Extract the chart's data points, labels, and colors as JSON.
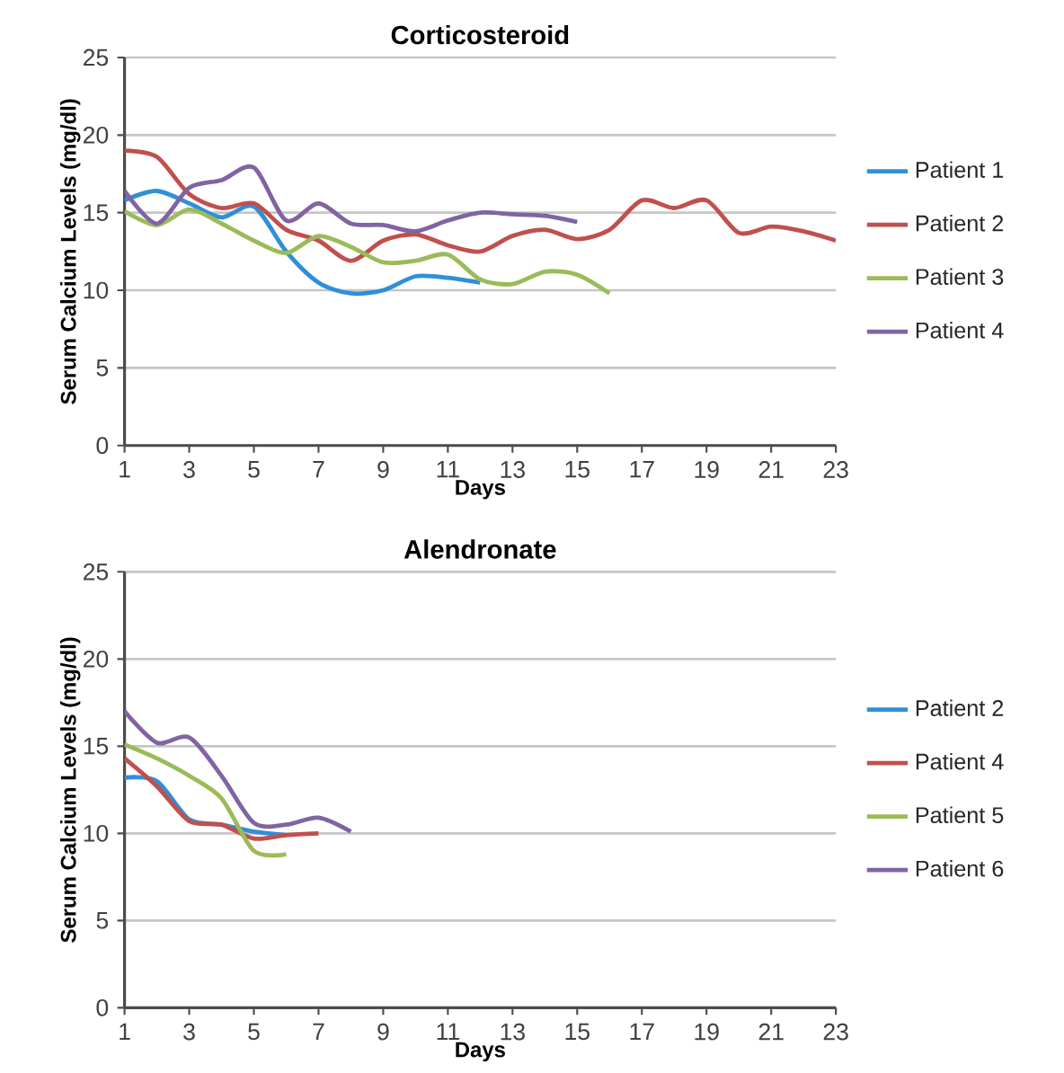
{
  "chart_data": [
    {
      "type": "line",
      "title": "Corticosteroid",
      "xlabel": "Days",
      "ylabel": "Serum Calcium Levels (mg/dl)",
      "xlim": [
        1,
        23
      ],
      "xticks": [
        1,
        3,
        5,
        7,
        9,
        11,
        13,
        15,
        17,
        19,
        21,
        23
      ],
      "ylim": [
        0,
        25
      ],
      "yticks": [
        0,
        5,
        10,
        15,
        20,
        25
      ],
      "grid": "y",
      "legend": "right",
      "marker": "none",
      "series": [
        {
          "name": "Patient 1",
          "color": "#2f8fd8",
          "x": [
            1,
            2,
            3,
            4,
            5,
            6,
            7,
            8,
            9,
            10,
            11,
            12
          ],
          "values": [
            15.8,
            16.4,
            15.6,
            14.7,
            15.4,
            12.5,
            10.5,
            9.8,
            10.0,
            10.9,
            10.8,
            10.5
          ]
        },
        {
          "name": "Patient 2",
          "color": "#c0504d",
          "x": [
            1,
            2,
            3,
            4,
            5,
            6,
            7,
            8,
            9,
            10,
            11,
            12,
            13,
            14,
            15,
            16,
            17,
            18,
            19,
            20,
            21,
            22,
            23
          ],
          "values": [
            19.0,
            18.6,
            16.2,
            15.3,
            15.6,
            13.9,
            13.2,
            11.9,
            13.2,
            13.6,
            12.9,
            12.5,
            13.5,
            13.9,
            13.3,
            13.9,
            15.8,
            15.3,
            15.8,
            13.7,
            14.1,
            13.8,
            13.2
          ]
        },
        {
          "name": "Patient 3",
          "color": "#9bbb59",
          "x": [
            1,
            2,
            3,
            4,
            5,
            6,
            7,
            8,
            9,
            10,
            11,
            12,
            13,
            14,
            15,
            16
          ],
          "values": [
            15.1,
            14.2,
            15.2,
            14.3,
            13.2,
            12.4,
            13.5,
            12.8,
            11.8,
            11.9,
            12.3,
            10.7,
            10.4,
            11.2,
            11.0,
            9.8
          ]
        },
        {
          "name": "Patient 4",
          "color": "#8064a2",
          "x": [
            1,
            2,
            3,
            4,
            5,
            6,
            7,
            8,
            9,
            10,
            11,
            12,
            13,
            14,
            15
          ],
          "values": [
            16.4,
            14.3,
            16.6,
            17.1,
            17.9,
            14.5,
            15.6,
            14.3,
            14.2,
            13.8,
            14.5,
            15.0,
            14.9,
            14.8,
            14.4
          ]
        }
      ]
    },
    {
      "type": "line",
      "title": "Alendronate",
      "xlabel": "Days",
      "ylabel": "Serum Calcium Levels (mg/dl)",
      "xlim": [
        1,
        23
      ],
      "xticks": [
        1,
        3,
        5,
        7,
        9,
        11,
        13,
        15,
        17,
        19,
        21,
        23
      ],
      "ylim": [
        0,
        25
      ],
      "yticks": [
        0,
        5,
        10,
        15,
        20,
        25
      ],
      "grid": "y",
      "legend": "right",
      "marker": "none",
      "series": [
        {
          "name": "Patient 2",
          "color": "#2f8fd8",
          "x": [
            1,
            2,
            3,
            4,
            5,
            6
          ],
          "values": [
            13.2,
            13.0,
            10.8,
            10.5,
            10.1,
            9.9
          ]
        },
        {
          "name": "Patient 4",
          "color": "#c0504d",
          "x": [
            1,
            2,
            3,
            4,
            5,
            6,
            7
          ],
          "values": [
            14.3,
            12.7,
            10.7,
            10.5,
            9.7,
            9.9,
            10.0
          ]
        },
        {
          "name": "Patient 5",
          "color": "#9bbb59",
          "x": [
            1,
            2,
            3,
            4,
            5,
            6
          ],
          "values": [
            15.1,
            14.3,
            13.3,
            12.0,
            9.0,
            8.8
          ]
        },
        {
          "name": "Patient 6",
          "color": "#8064a2",
          "x": [
            1,
            2,
            3,
            4,
            5,
            6,
            7,
            8
          ],
          "values": [
            17.0,
            15.2,
            15.5,
            13.3,
            10.6,
            10.5,
            10.9,
            10.1
          ]
        }
      ]
    }
  ]
}
